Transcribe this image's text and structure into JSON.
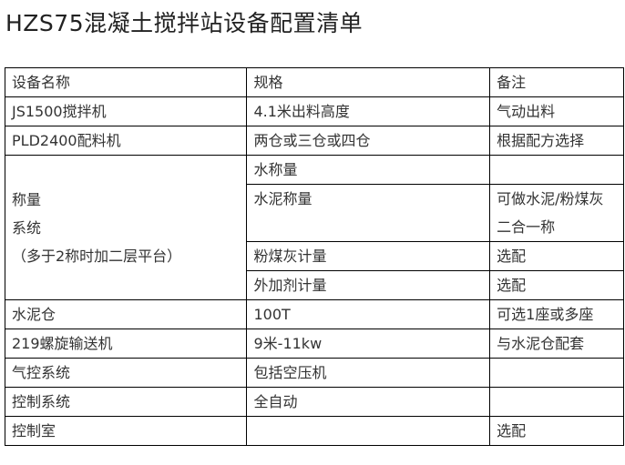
{
  "title": "HZS75混凝土搅拌站设备配置清单",
  "headers": [
    "设备名称",
    "规格",
    "备注"
  ],
  "rows": [
    [
      "JS1500搅拌机",
      "4.1米出料高度",
      "气动出料"
    ],
    [
      "PLD2400配料机",
      "两仓或三仓或四仓",
      "根据配方选择"
    ],
    [
      "水称量",
      ""
    ],
    [
      "水泥称量",
      "可做水泥/粉煤灰二合一称"
    ],
    [
      "粉煤灰计量",
      "选配"
    ],
    [
      "外加剂计量",
      "选配"
    ],
    [
      "水泥仓",
      "100T",
      "可选1座或多座"
    ],
    [
      "219螺旋输送机",
      "9米-11kw",
      "与水泥仓配套"
    ],
    [
      "气控系统",
      "包括空压机",
      ""
    ],
    [
      "控制系统",
      "全自动",
      ""
    ],
    [
      "控制室",
      "",
      "选配"
    ]
  ],
  "weighing_system": "称量系统（多于2称时加二层平台）"
}
